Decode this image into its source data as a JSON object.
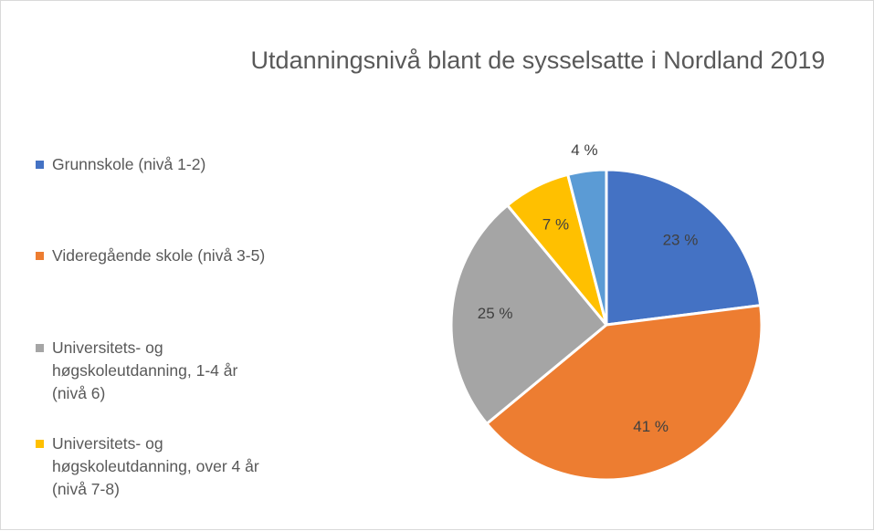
{
  "chart_data": {
    "type": "pie",
    "title": "Utdanningsnivå blant de sysselsatte i Nordland 2019",
    "categories": [
      "Grunnskole (nivå 1-2)",
      "Videregående skole (nivå 3-5)",
      "Universitets- og høgskoleutdanning, 1-4 år (nivå 6)",
      "Universitets- og høgskoleutdanning, over 4 år (nivå 7-8)",
      null
    ],
    "values": [
      23,
      41,
      25,
      7,
      4
    ],
    "value_labels": [
      "23 %",
      "41 %",
      "25 %",
      "7 %",
      "4 %"
    ],
    "colors": [
      "#4472c4",
      "#ed7d31",
      "#a5a5a5",
      "#ffc000",
      "#5b9bd5"
    ]
  }
}
